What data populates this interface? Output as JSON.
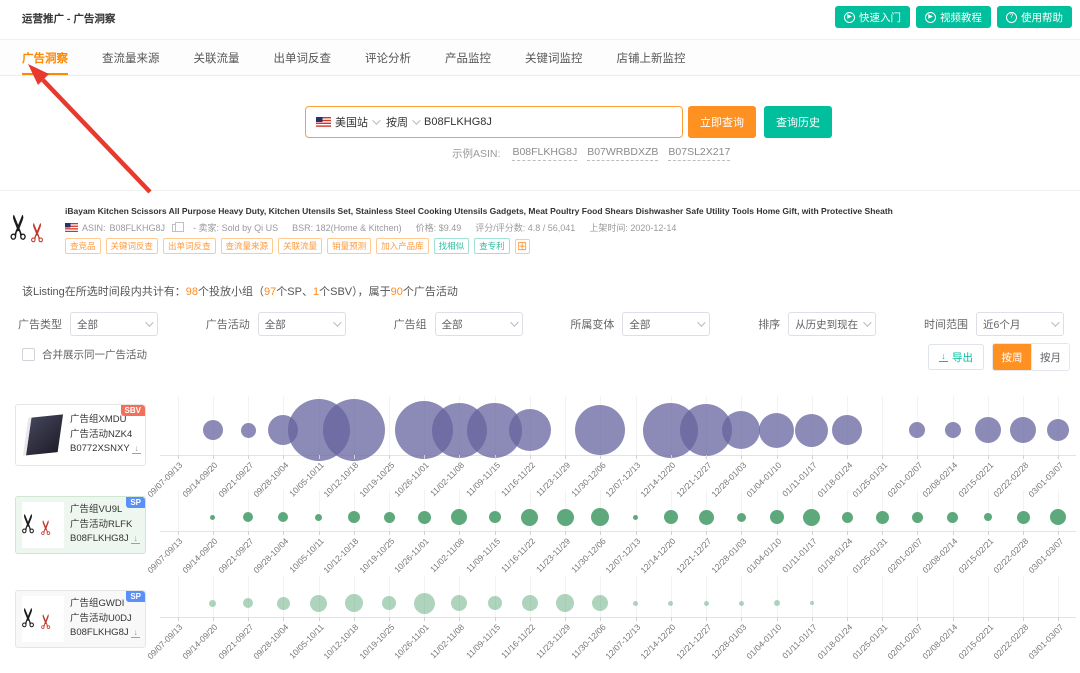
{
  "colors": {
    "accent_orange": "#ff9123",
    "accent_teal": "#00bf9c",
    "tab_active": "#ff8800",
    "arrow_red": "#e8392e",
    "bubble_purple": "#65639e",
    "bubble_green": "#4ba06e",
    "badge_sp_blue": "#5b8ff9",
    "badge_sbv_red": "#f2705b"
  },
  "header": {
    "breadcrumb": "运营推广 - 广告洞察",
    "buttons": [
      {
        "label": "快速入门",
        "icon": "play-circle-icon",
        "glyph": "▶"
      },
      {
        "label": "视频教程",
        "icon": "video-circle-icon",
        "glyph": "▶"
      },
      {
        "label": "使用帮助",
        "icon": "help-circle-icon",
        "glyph": "?"
      }
    ]
  },
  "tabs": [
    {
      "label": "广告洞察",
      "active": true
    },
    {
      "label": "查流量来源",
      "active": false
    },
    {
      "label": "关联流量",
      "active": false
    },
    {
      "label": "出单词反查",
      "active": false
    },
    {
      "label": "评论分析",
      "active": false
    },
    {
      "label": "产品监控",
      "active": false
    },
    {
      "label": "关键词监控",
      "active": false
    },
    {
      "label": "店铺上新监控",
      "active": false
    }
  ],
  "search": {
    "site": "美国站",
    "period": "按周",
    "query": "B08FLKHG8J",
    "query_button": "立即查询",
    "history_button": "查询历史",
    "example_label": "示例ASIN:",
    "example_asins": [
      "B08FLKHG8J",
      "B07WRBDXZB",
      "B07SL2X217"
    ]
  },
  "product": {
    "title": "iBayam Kitchen Scissors All Purpose Heavy Duty, Kitchen Utensils Set, Stainless Steel Cooking Utensils Gadgets, Meat Poultry Food Shears Dishwasher Safe Utility Tools Home Gift, with Protective Sheath",
    "asin_label": "ASIN:",
    "asin": "B08FLKHG8J",
    "seller_label": "- 卖家:",
    "seller": "Sold by Qi US",
    "bsr_label": "BSR:",
    "bsr": "182(Home & Kitchen)",
    "price_label": "价格:",
    "price": "$9.49",
    "rating_label": "评分/评分数:",
    "rating": "4.8 / 56,041",
    "listed_label": "上架时间:",
    "listed": "2020-12-14",
    "tags_orange": [
      "查竞品",
      "关键词反查",
      "出单词反查",
      "查流量来源",
      "关联流量",
      "销量预测",
      "加入产品库"
    ],
    "tags_teal": [
      "找相似",
      "查专利"
    ]
  },
  "summary": {
    "segments": [
      {
        "t": "该Listing在所选时间段内共计有：",
        "h": false
      },
      {
        "t": "98",
        "h": true
      },
      {
        "t": "个投放小组（",
        "h": false
      },
      {
        "t": "97",
        "h": true
      },
      {
        "t": "个SP、",
        "h": false
      },
      {
        "t": "1",
        "h": true
      },
      {
        "t": "个SBV），属于",
        "h": false
      },
      {
        "t": "90",
        "h": true
      },
      {
        "t": "个广告活动",
        "h": false
      }
    ]
  },
  "filters": [
    {
      "label": "广告类型",
      "value": "全部"
    },
    {
      "label": "广告活动",
      "value": "全部"
    },
    {
      "label": "广告组",
      "value": "全部"
    },
    {
      "label": "所属变体",
      "value": "全部"
    },
    {
      "label": "排序",
      "value": "从历史到现在"
    },
    {
      "label": "时间范围",
      "value": "近6个月"
    }
  ],
  "toolbar": {
    "merge_label": "合并展示同一广告活动",
    "merge_checked": false,
    "export_label": "导出",
    "by_week": "按周",
    "by_month": "按月",
    "active_mode": "按周"
  },
  "chart_data": {
    "type": "scatter",
    "subtype": "bubble-timeline",
    "categories": [
      "09/07-09/13",
      "09/14-09/20",
      "09/21-09/27",
      "09/28-10/04",
      "10/05-10/11",
      "10/12-10/18",
      "10/19-10/25",
      "10/26-11/01",
      "11/02-11/08",
      "11/09-11/15",
      "11/16-11/22",
      "11/23-11/29",
      "11/30-12/06",
      "12/07-12/13",
      "12/14-12/20",
      "12/21-12/27",
      "12/28-01/03",
      "01/04-01/10",
      "01/11-01/17",
      "01/18-01/24",
      "01/25-01/31",
      "02/01-02/07",
      "02/08-02/14",
      "02/15-02/21",
      "02/22-02/28",
      "03/01-03/07"
    ],
    "rows": [
      {
        "ad_group": "广告组XMDU",
        "campaign": "广告活动NZK4",
        "asin": "B0772XSNXY",
        "badge": "SBV",
        "badge_color": "#f2705b",
        "bubble_color": "#65639e",
        "bubble_opacity": 0.75,
        "card_bg": "#ffffff",
        "card_border": "#e6e6e6",
        "image": "file-dividers",
        "sizes": [
          0,
          20,
          15,
          30,
          62,
          62,
          0,
          58,
          55,
          55,
          42,
          0,
          50,
          0,
          55,
          52,
          38,
          35,
          33,
          30,
          0,
          16,
          16,
          26,
          26,
          22
        ]
      },
      {
        "ad_group": "广告组VU9L",
        "campaign": "广告活动RLFK",
        "asin": "B08FLKHG8J",
        "badge": "SP",
        "badge_color": "#5b8ff9",
        "bubble_color": "#4ba06e",
        "bubble_opacity": 0.9,
        "card_bg": "#eef7ef",
        "card_border": "#cfe6d2",
        "image": "scissors",
        "sizes": [
          0,
          5,
          10,
          10,
          7,
          12,
          11,
          13,
          16,
          12,
          17,
          17,
          18,
          5,
          14,
          15,
          9,
          14,
          17,
          11,
          13,
          11,
          11,
          8,
          13,
          16
        ]
      },
      {
        "ad_group": "广告组GWDI",
        "campaign": "广告活动U0DJ",
        "asin": "B08FLKHG8J",
        "badge": "SP",
        "badge_color": "#5b8ff9",
        "bubble_color": "#4ba06e",
        "bubble_opacity": 0.45,
        "card_bg": "#f8f8f8",
        "card_border": "#e6e6e6",
        "image": "scissors",
        "sizes": [
          0,
          7,
          10,
          13,
          17,
          18,
          14,
          21,
          16,
          14,
          16,
          18,
          16,
          5,
          5,
          5,
          5,
          6,
          4,
          0,
          0,
          0,
          0,
          0,
          0,
          0
        ]
      }
    ]
  }
}
